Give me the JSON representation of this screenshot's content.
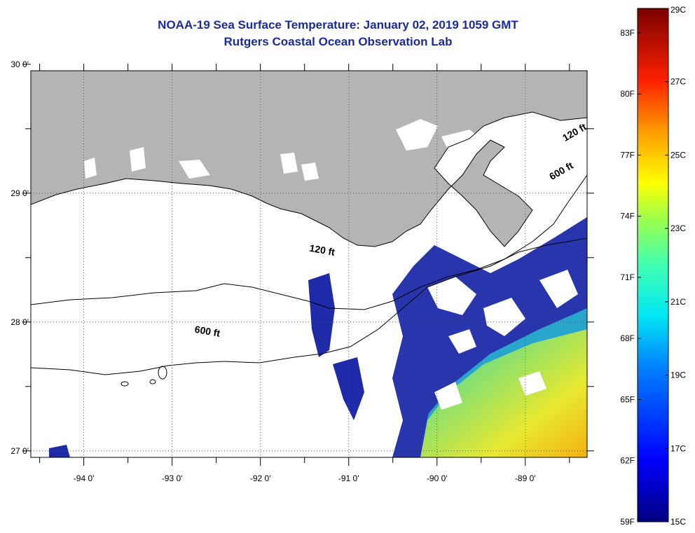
{
  "title_line1": "NOAA-19 Sea Surface Temperature:  January 02, 2019 1059 GMT",
  "title_line2": "Rutgers Coastal Ocean Observation Lab",
  "map": {
    "lon_range": [
      -94.6,
      -88.3
    ],
    "lat_range": [
      26.95,
      29.95
    ],
    "lon_ticks": [
      {
        "lon": -94,
        "label": "-94 0'"
      },
      {
        "lon": -93,
        "label": "-93 0'"
      },
      {
        "lon": -92,
        "label": "-92 0'"
      },
      {
        "lon": -91,
        "label": "-91 0'"
      },
      {
        "lon": -90,
        "label": "-90 0'"
      },
      {
        "lon": -89,
        "label": "-89 0'"
      }
    ],
    "lat_ticks": [
      {
        "lat": 30,
        "label": "30 0'"
      },
      {
        "lat": 29,
        "label": "29 0'"
      },
      {
        "lat": 28,
        "label": "28 0'"
      },
      {
        "lat": 27,
        "label": "27 0'"
      }
    ],
    "contour_labels": [
      {
        "text": "120 ft",
        "lon": -91.45,
        "lat": 28.55
      },
      {
        "text": "600 ft",
        "lon": -92.75,
        "lat": 27.92
      },
      {
        "text": "120 ft",
        "lon": -88.55,
        "lat": 29.4
      },
      {
        "text": "600 ft",
        "lon": -88.7,
        "lat": 29.1
      }
    ],
    "colors": {
      "land": "#b4b4b4",
      "ocean_clear": "#ffffff",
      "frame": "#000000"
    }
  },
  "colorbar": {
    "min_c": 15,
    "max_c": 29,
    "celsius_ticks": [
      {
        "value": 29,
        "label": "29C"
      },
      {
        "value": 27,
        "label": "27C"
      },
      {
        "value": 25,
        "label": "25C"
      },
      {
        "value": 23,
        "label": "23C"
      },
      {
        "value": 21,
        "label": "21C"
      },
      {
        "value": 19,
        "label": "19C"
      },
      {
        "value": 17,
        "label": "17C"
      },
      {
        "value": 15,
        "label": "15C"
      }
    ],
    "fahrenheit_ticks": [
      {
        "value": 83,
        "label": "83F"
      },
      {
        "value": 80,
        "label": "80F"
      },
      {
        "value": 77,
        "label": "77F"
      },
      {
        "value": 74,
        "label": "74F"
      },
      {
        "value": 71,
        "label": "71F"
      },
      {
        "value": 68,
        "label": "68F"
      },
      {
        "value": 65,
        "label": "65F"
      },
      {
        "value": 62,
        "label": "62F"
      },
      {
        "value": 59,
        "label": "59F"
      }
    ]
  }
}
